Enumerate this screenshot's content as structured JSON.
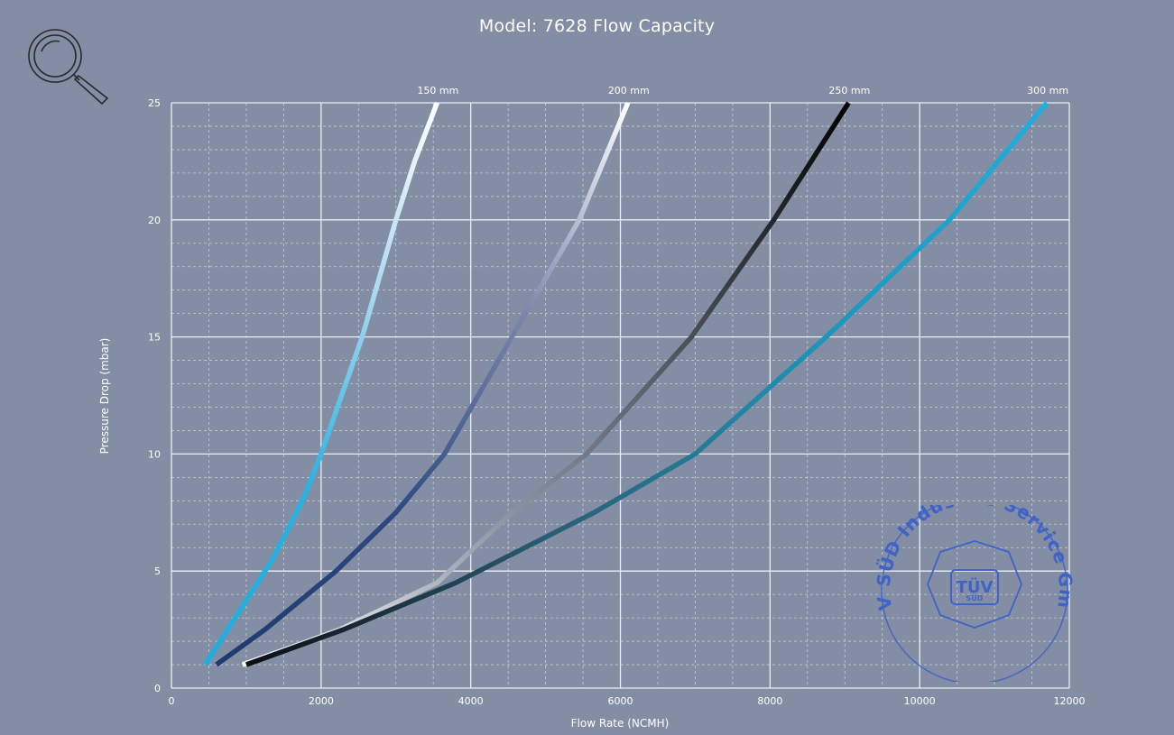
{
  "icons": {
    "zoom": "magnifier-icon",
    "stamp": "certification-stamp"
  },
  "chart_data": {
    "type": "line",
    "title": "Model: 7628 Flow Capacity",
    "xlabel": "Flow Rate (NCMH)",
    "ylabel": "Pressure Drop (mbar)",
    "xlim": [
      0,
      12000
    ],
    "ylim": [
      0,
      25
    ],
    "xticks": [
      "0",
      "2000",
      "4000",
      "6000",
      "8000",
      "10000",
      "12000"
    ],
    "yticks": [
      "0",
      "5",
      "10",
      "15",
      "20",
      "25"
    ],
    "grid": true,
    "series": [
      {
        "name": "150 mm",
        "gradient": [
          "#1eaee0",
          "#27b3e3",
          "#a8d8ee",
          "#ffffff"
        ],
        "x": [
          450,
          650,
          950,
          1350,
          1750,
          2000,
          2550,
          3000,
          3250,
          3550
        ],
        "y": [
          1,
          2,
          3.5,
          5.5,
          8,
          10,
          15,
          20,
          22.5,
          25
        ]
      },
      {
        "name": "200 mm",
        "gradient": [
          "#1d3a6e",
          "#2d4b82",
          "#7b86ac",
          "#ffffff"
        ],
        "x": [
          600,
          1250,
          2200,
          3000,
          3650,
          4550,
          5450,
          6100
        ],
        "y": [
          1,
          2.5,
          5,
          7.5,
          10,
          15,
          20,
          25
        ]
      },
      {
        "name": "250 mm",
        "gradient": [
          "#ffffff",
          "#929aa8",
          "#4a4f58",
          "#000000"
        ],
        "x": [
          950,
          1650,
          2250,
          3550,
          4550,
          5550,
          6950,
          8050,
          9050
        ],
        "y": [
          1,
          1.8,
          2.5,
          4.5,
          7.5,
          10,
          15,
          20,
          25
        ]
      },
      {
        "name": "300 mm",
        "gradient": [
          "#0c0e14",
          "#2a5f74",
          "#1c95b8",
          "#1eb0e0"
        ],
        "x": [
          1000,
          2300,
          3800,
          5650,
          7000,
          8750,
          10400,
          11700
        ],
        "y": [
          1,
          2.5,
          4.5,
          7.5,
          10,
          15,
          20,
          25
        ]
      }
    ]
  },
  "stamp": {
    "ring_text": "TÜV SÜD Industrie Service GmbH",
    "logo_main": "TÜV",
    "logo_sub": "SÜD",
    "color": "#3f63c8"
  }
}
